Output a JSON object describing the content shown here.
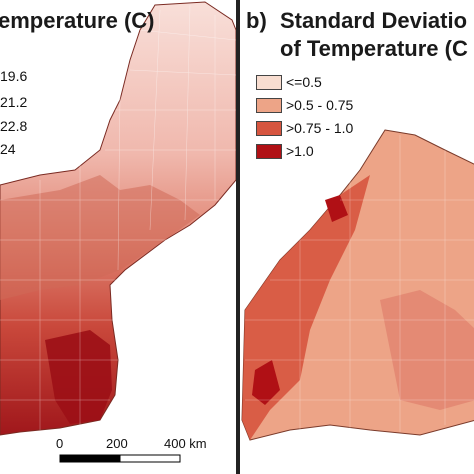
{
  "panel_a": {
    "title": "emperature (C)",
    "legend_labels": [
      "19.6",
      "21.2",
      "22.8",
      "24"
    ],
    "scale_bar": {
      "labels": [
        "0",
        "200",
        "400 km"
      ]
    }
  },
  "panel_b": {
    "letter": "b)",
    "title_line1": "Standard Deviatio",
    "title_line2": "of Temperature (C",
    "legend": [
      {
        "label": "<=0.5",
        "color": "#f8ddd0"
      },
      {
        "label": ">0.5 - 0.75",
        "color": "#eda487"
      },
      {
        "label": ">0.75 - 1.0",
        "color": "#d6553f"
      },
      {
        "label": ">1.0",
        "color": "#b01015"
      }
    ]
  },
  "colors": {
    "very_light": "#f7d9d3",
    "light": "#f0b5a8",
    "mid": "#e07f6c",
    "dark": "#c9463a",
    "darkest": "#9c1016",
    "b_light": "#f3c3a8",
    "b_mid": "#d6553f",
    "b_dark": "#b01015"
  }
}
